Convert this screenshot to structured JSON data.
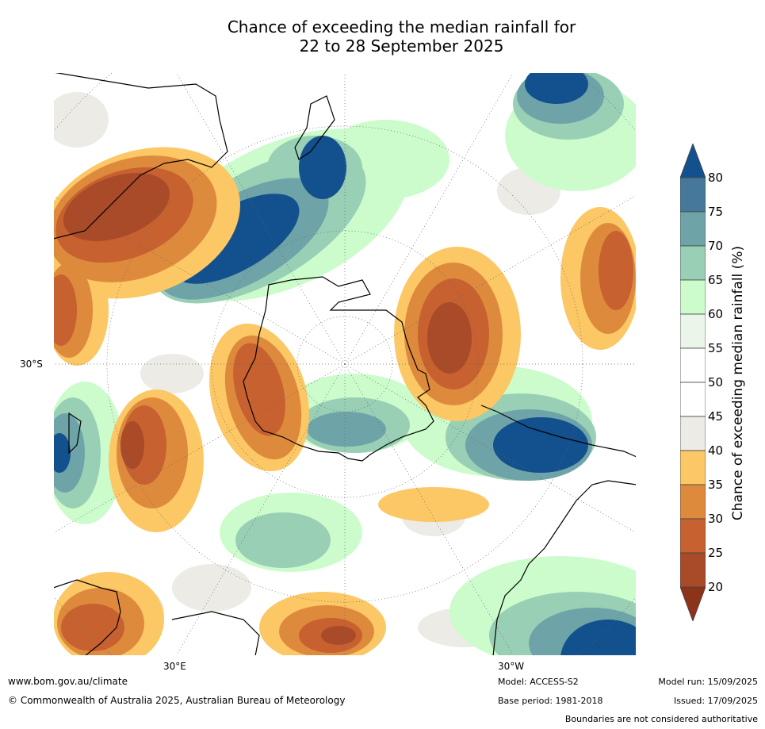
{
  "title": {
    "line1": "Chance of exceeding the median rainfall for",
    "line2": "22 to 28 September 2025"
  },
  "map": {
    "projection": "south polar stereographic",
    "lat_labels": [
      "30°S"
    ],
    "lon_labels": [
      "30°E",
      "30°W"
    ],
    "landmass_outline_color": "#000000"
  },
  "colorbar": {
    "label": "Chance of exceeding median rainfall (%)",
    "ticks": [
      "20",
      "25",
      "30",
      "35",
      "40",
      "45",
      "50",
      "55",
      "60",
      "65",
      "70",
      "75",
      "80"
    ],
    "bins": [
      {
        "range": "<20",
        "color": "#8c3319"
      },
      {
        "range": "20-25",
        "color": "#a94b28"
      },
      {
        "range": "25-30",
        "color": "#c76130"
      },
      {
        "range": "30-35",
        "color": "#de8a3d"
      },
      {
        "range": "35-40",
        "color": "#fcc765"
      },
      {
        "range": "40-45",
        "color": "#ecebe6"
      },
      {
        "range": "45-50",
        "color": "#ffffff"
      },
      {
        "range": "50-55",
        "color": "#ffffff"
      },
      {
        "range": "55-60",
        "color": "#eaf6ea"
      },
      {
        "range": "60-65",
        "color": "#ccfccc"
      },
      {
        "range": "65-70",
        "color": "#99cfb5"
      },
      {
        "range": "70-75",
        "color": "#6ea4a8"
      },
      {
        "range": "75-80",
        "color": "#45789a"
      },
      {
        "range": ">80",
        "color": "#13508e"
      }
    ]
  },
  "footer": {
    "website": "www.bom.gov.au/climate",
    "copyright": "© Commonwealth of Australia 2025, Australian Bureau of Meteorology",
    "model": "Model: ACCESS-S2",
    "base_period": "Base period: 1981-2018",
    "model_run": "Model run: 15/09/2025",
    "issued": "Issued: 17/09/2025",
    "disclaimer": "Boundaries are not considered authoritative"
  }
}
